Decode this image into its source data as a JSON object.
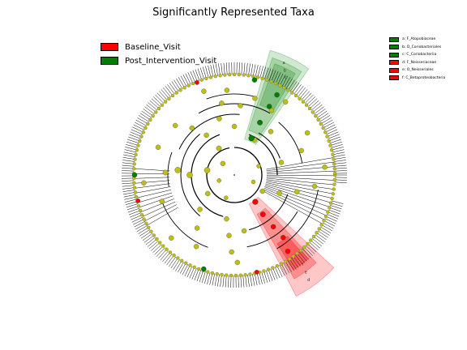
{
  "title": "Significantly Represented Taxa",
  "groups": [
    {
      "name": "Baseline_Visit",
      "color": "#ff0000"
    },
    {
      "name": "Post_Intervention_Visit",
      "color": "#008000"
    }
  ],
  "taxa": [
    {
      "label": "a: F_Atopobiaceae",
      "group": "Post_Intervention_Visit",
      "color": "#008000"
    },
    {
      "label": "b: O_Coriobacteriales",
      "group": "Post_Intervention_Visit",
      "color": "#008000"
    },
    {
      "label": "c: C_Coriobacteriia",
      "group": "Post_Intervention_Visit",
      "color": "#008000"
    },
    {
      "label": "d: F_Neisseriaceae",
      "group": "Baseline_Visit",
      "color": "#ff0000"
    },
    {
      "label": "e: O_Neisseriales",
      "group": "Baseline_Visit",
      "color": "#ff0000"
    },
    {
      "label": "f: C_Betaproteobacteria",
      "group": "Baseline_Visit",
      "color": "#ff0000"
    }
  ],
  "clade_letters": [
    "a",
    "b",
    "c",
    "d",
    "e",
    "f"
  ],
  "node_color": "#bfbf10",
  "neutral_color": "#bfbf10"
}
